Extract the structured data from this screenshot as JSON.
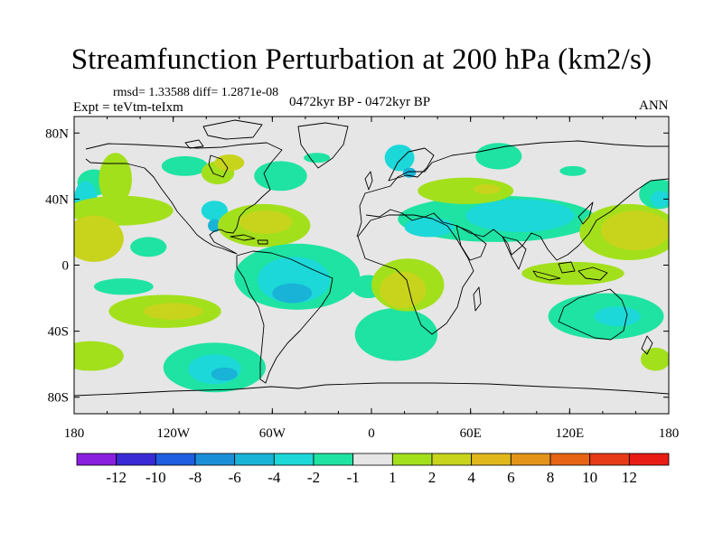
{
  "chart_data": {
    "type": "heatmap",
    "title": "Streamfunction Perturbation at 200 hPa (km2/s)",
    "subtitle_stats": "rmsd= 1.33588 diff= 1.2871e-08",
    "left_label": "Expt = teVtm-teIxm",
    "center_label": "0472kyr BP - 0472kyr BP",
    "right_label": "ANN",
    "xlabel": "",
    "ylabel": "",
    "x_ticks": [
      "180",
      "120W",
      "60W",
      "0",
      "60E",
      "120E",
      "180"
    ],
    "y_ticks": [
      "80N",
      "40N",
      "0",
      "40S",
      "80S"
    ],
    "xlim": [
      -180,
      180
    ],
    "ylim": [
      -90,
      90
    ],
    "colorbar": {
      "labels": [
        "-12",
        "-10",
        "-8",
        "-6",
        "-4",
        "-2",
        "-1",
        "1",
        "2",
        "4",
        "6",
        "8",
        "10",
        "12"
      ],
      "colors": [
        "#8a1fe0",
        "#3a2ad6",
        "#1f5ee0",
        "#1b8ed8",
        "#18b3d6",
        "#1cd8d8",
        "#1fe3a2",
        "#e6e6e6",
        "#a3e01c",
        "#c8d41c",
        "#e0b81c",
        "#e39419",
        "#e66414",
        "#e63b16",
        "#e81c14"
      ]
    },
    "regions": [
      {
        "lon": 77,
        "lat": 66,
        "rx": 14,
        "ry": 8,
        "level": "-1"
      },
      {
        "lon": 17,
        "lat": 65,
        "rx": 9,
        "ry": 8,
        "level": "-2"
      },
      {
        "lon": 23,
        "lat": 56,
        "rx": 4,
        "ry": 3,
        "level": "-4"
      },
      {
        "lon": -33,
        "lat": 65,
        "rx": 8,
        "ry": 3,
        "level": "-1"
      },
      {
        "lon": 122,
        "lat": 57,
        "rx": 8,
        "ry": 3,
        "level": "-1"
      },
      {
        "lon": -168,
        "lat": 50,
        "rx": 10,
        "ry": 8,
        "level": "-1"
      },
      {
        "lon": -155,
        "lat": 52,
        "rx": 10,
        "ry": 16,
        "level": "1"
      },
      {
        "lon": -113,
        "lat": 60,
        "rx": 14,
        "ry": 6,
        "level": "-1"
      },
      {
        "lon": -93,
        "lat": 56,
        "rx": 10,
        "ry": 7,
        "level": "1"
      },
      {
        "lon": -86,
        "lat": 62,
        "rx": 9,
        "ry": 5,
        "level": "2"
      },
      {
        "lon": -55,
        "lat": 54,
        "rx": 16,
        "ry": 9,
        "level": "-1"
      },
      {
        "lon": -173,
        "lat": 40,
        "rx": 7,
        "ry": 11,
        "level": "-2"
      },
      {
        "lon": -152,
        "lat": 33,
        "rx": 32,
        "ry": 9,
        "level": "1"
      },
      {
        "lon": -168,
        "lat": 16,
        "rx": 18,
        "ry": 14,
        "level": "2"
      },
      {
        "lon": -135,
        "lat": 11,
        "rx": 11,
        "ry": 6,
        "level": "-1"
      },
      {
        "lon": -95,
        "lat": 33,
        "rx": 8,
        "ry": 6,
        "level": "-2"
      },
      {
        "lon": -95,
        "lat": 24,
        "rx": 4,
        "ry": 4,
        "level": "-4"
      },
      {
        "lon": -65,
        "lat": 24,
        "rx": 28,
        "ry": 13,
        "level": "1"
      },
      {
        "lon": -64,
        "lat": 26,
        "rx": 16,
        "ry": 7,
        "level": "2"
      },
      {
        "lon": -150,
        "lat": -13,
        "rx": 18,
        "ry": 5,
        "level": "-1"
      },
      {
        "lon": -45,
        "lat": -7,
        "rx": 38,
        "ry": 20,
        "level": "-1"
      },
      {
        "lon": -47,
        "lat": -9,
        "rx": 22,
        "ry": 14,
        "level": "-2"
      },
      {
        "lon": -48,
        "lat": -17,
        "rx": 12,
        "ry": 6,
        "level": "-4"
      },
      {
        "lon": -125,
        "lat": -28,
        "rx": 34,
        "ry": 10,
        "level": "1"
      },
      {
        "lon": -120,
        "lat": -28,
        "rx": 18,
        "ry": 5,
        "level": "2"
      },
      {
        "lon": -170,
        "lat": -55,
        "rx": 20,
        "ry": 9,
        "level": "1"
      },
      {
        "lon": -95,
        "lat": -62,
        "rx": 31,
        "ry": 15,
        "level": "-1"
      },
      {
        "lon": -95,
        "lat": -63,
        "rx": 16,
        "ry": 9,
        "level": "-2"
      },
      {
        "lon": -89,
        "lat": -66,
        "rx": 8,
        "ry": 4,
        "level": "-4"
      },
      {
        "lon": 15,
        "lat": -42,
        "rx": 25,
        "ry": 16,
        "level": "-1"
      },
      {
        "lon": -2,
        "lat": -13,
        "rx": 10,
        "ry": 7,
        "level": "-1"
      },
      {
        "lon": 22,
        "lat": -12,
        "rx": 22,
        "ry": 16,
        "level": "1"
      },
      {
        "lon": 19,
        "lat": -15,
        "rx": 14,
        "ry": 11,
        "level": "2"
      },
      {
        "lon": 76,
        "lat": 28,
        "rx": 60,
        "ry": 14,
        "level": "-1"
      },
      {
        "lon": 90,
        "lat": 30,
        "rx": 33,
        "ry": 10,
        "level": "-2"
      },
      {
        "lon": 35,
        "lat": 23,
        "rx": 15,
        "ry": 6,
        "level": "-2"
      },
      {
        "lon": 57,
        "lat": 45,
        "rx": 29,
        "ry": 8,
        "level": "1"
      },
      {
        "lon": 70,
        "lat": 46,
        "rx": 8,
        "ry": 3,
        "level": "2"
      },
      {
        "lon": 122,
        "lat": -5,
        "rx": 31,
        "ry": 7,
        "level": "1"
      },
      {
        "lon": 156,
        "lat": 20,
        "rx": 30,
        "ry": 17,
        "level": "1"
      },
      {
        "lon": 160,
        "lat": 21,
        "rx": 21,
        "ry": 12,
        "level": "2"
      },
      {
        "lon": 174,
        "lat": 43,
        "rx": 12,
        "ry": 9,
        "level": "-1"
      },
      {
        "lon": 175,
        "lat": 40,
        "rx": 6,
        "ry": 5,
        "level": "-2"
      },
      {
        "lon": 142,
        "lat": -31,
        "rx": 35,
        "ry": 14,
        "level": "-1"
      },
      {
        "lon": 149,
        "lat": -31,
        "rx": 14,
        "ry": 6,
        "level": "-2"
      },
      {
        "lon": 172,
        "lat": -57,
        "rx": 9,
        "ry": 7,
        "level": "1"
      }
    ]
  }
}
